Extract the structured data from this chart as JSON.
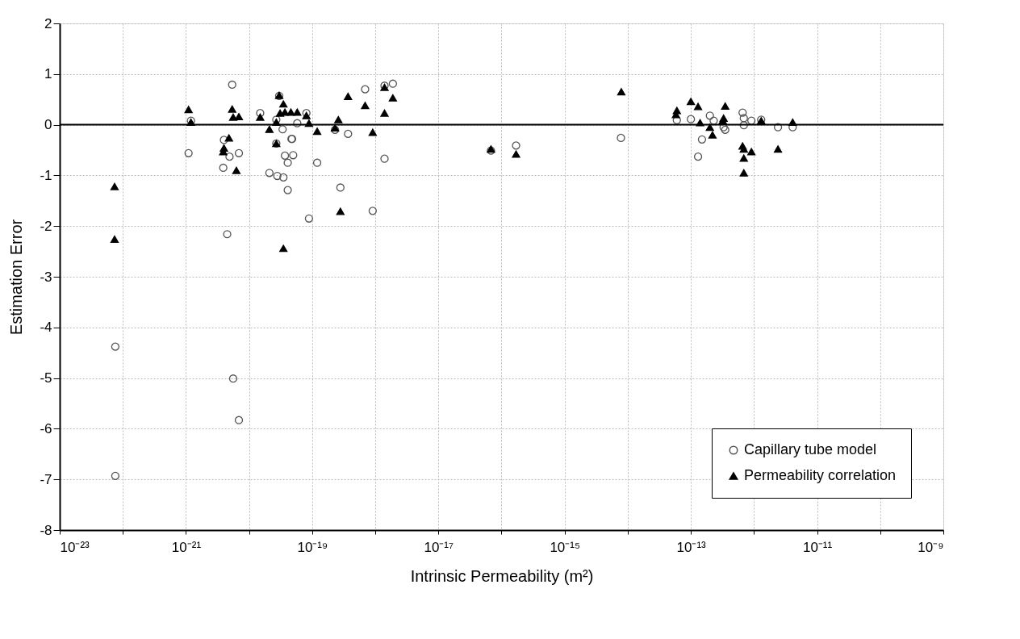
{
  "chart_data": {
    "type": "scatter",
    "xlabel": "Intrinsic Permeability (m²)",
    "ylabel": "Estimation Error",
    "log": "x",
    "grid": true,
    "legend": "bottom right",
    "xlim": [
      1e-23,
      1e-09
    ],
    "ylim": [
      -8,
      2
    ],
    "xticks": [
      {
        "value": 1e-23,
        "label": "10⁻²³"
      },
      {
        "value": 1e-22,
        "label": null
      },
      {
        "value": 1e-21,
        "label": "10⁻²¹"
      },
      {
        "value": 1e-20,
        "label": null
      },
      {
        "value": 1e-19,
        "label": "10⁻¹⁹"
      },
      {
        "value": 1e-18,
        "label": null
      },
      {
        "value": 1e-17,
        "label": "10⁻¹⁷"
      },
      {
        "value": 1e-16,
        "label": null
      },
      {
        "value": 1e-15,
        "label": "10⁻¹⁵"
      },
      {
        "value": 1e-14,
        "label": null
      },
      {
        "value": 1e-13,
        "label": "10⁻¹³"
      },
      {
        "value": 1e-12,
        "label": null
      },
      {
        "value": 1e-11,
        "label": "10⁻¹¹"
      },
      {
        "value": 1e-10,
        "label": null
      },
      {
        "value": 1e-09,
        "label": "10⁻⁹"
      }
    ],
    "yticks": [
      -8,
      -7,
      -6,
      -5,
      -4,
      -3,
      -2,
      -1,
      0,
      1,
      2
    ],
    "ref_lines": [
      {
        "axis": "y",
        "value": 0,
        "color": "#000000",
        "line_style": "solid"
      }
    ],
    "series": [
      {
        "name": "Capillary tube model",
        "color": "#555555",
        "marker": "circle",
        "x": [
          5.4e-21,
          1.2e-21,
          1.1e-21,
          4e-21,
          4.9e-21,
          6.9e-21,
          3.9e-21,
          1.5e-20,
          3e-20,
          2.7e-20,
          3.4e-20,
          4.7e-20,
          3.7e-20,
          4.1e-20,
          2.1e-20,
          2.8e-20,
          3.5e-20,
          4.1e-20,
          4.5e-21,
          2.7e-20,
          7.6e-23,
          7.6e-23,
          5.6e-21,
          6.9e-21,
          6.9e-19,
          1.4e-18,
          1.9e-18,
          8.1e-20,
          5.8e-20,
          2.3e-19,
          3.7e-19,
          4.8e-20,
          5e-20,
          1.2e-19,
          1.4e-18,
          2.8e-19,
          8.9e-20,
          9.1e-19,
          1.7e-16,
          6.8e-17,
          7.8e-15,
          6e-14,
          1e-13,
          2e-13,
          2.3e-13,
          1.5e-13,
          1.3e-13,
          3.3e-13,
          3.5e-13,
          6.6e-13,
          6.9e-13,
          6.9e-13,
          9.1e-13,
          1.3e-12,
          2.4e-12,
          4.1e-12
        ],
        "values": [
          0.79,
          0.08,
          -0.56,
          -0.3,
          -0.63,
          -0.56,
          -0.85,
          0.23,
          0.57,
          0.1,
          -0.09,
          -0.28,
          -0.61,
          -0.75,
          -0.95,
          -1.01,
          -1.04,
          -1.29,
          -2.16,
          -0.37,
          -4.38,
          -6.93,
          -5.01,
          -5.83,
          0.7,
          0.77,
          0.81,
          0.23,
          0.03,
          -0.1,
          -0.18,
          -0.28,
          -0.6,
          -0.75,
          -0.67,
          -1.24,
          -1.85,
          -1.7,
          -0.41,
          -0.51,
          -0.26,
          0.09,
          0.11,
          0.18,
          0.08,
          -0.29,
          -0.63,
          -0.05,
          -0.1,
          0.24,
          0.13,
          -0.01,
          0.08,
          0.1,
          -0.05,
          -0.05
        ]
      },
      {
        "name": "Permeability correlation",
        "color": "#000000",
        "marker": "triangle",
        "x": [
          1.1e-21,
          1.2e-21,
          5.4e-21,
          5.6e-21,
          6.9e-21,
          4.8e-21,
          4e-21,
          3.9e-21,
          6.3e-21,
          7.4e-23,
          7.4e-23,
          1.5e-20,
          3e-20,
          2.1e-20,
          2.7e-20,
          3.5e-20,
          3.7e-20,
          4.6e-20,
          3.1e-20,
          3.5e-20,
          2.7e-20,
          3.7e-19,
          6.9e-19,
          1.4e-18,
          1.9e-18,
          1.4e-18,
          2.6e-19,
          8.9e-20,
          1.2e-19,
          2.3e-19,
          9.1e-19,
          2.8e-19,
          5.8e-20,
          8.1e-20,
          6.8e-17,
          1.7e-16,
          7.9e-15,
          6e-14,
          5.8e-14,
          1.3e-13,
          1e-13,
          3.5e-13,
          1.4e-13,
          2e-13,
          2.2e-13,
          3.3e-13,
          3.2e-13,
          6.6e-13,
          6.9e-13,
          9.1e-13,
          6.9e-13,
          6.9e-13,
          1.3e-12,
          2.4e-12,
          4.1e-12
        ],
        "values": [
          0.3,
          0.05,
          0.31,
          0.15,
          0.16,
          -0.26,
          -0.46,
          -0.53,
          -0.9,
          -1.22,
          -2.26,
          0.15,
          0.58,
          -0.09,
          0.05,
          0.41,
          0.25,
          0.25,
          0.23,
          -2.44,
          -0.37,
          0.56,
          0.38,
          0.74,
          0.53,
          0.23,
          0.1,
          0.03,
          -0.13,
          -0.06,
          -0.15,
          -1.71,
          0.25,
          0.18,
          -0.48,
          -0.58,
          0.65,
          0.28,
          0.2,
          0.36,
          0.46,
          0.37,
          0.04,
          -0.05,
          -0.2,
          0.13,
          0.08,
          -0.42,
          -0.48,
          -0.53,
          -0.66,
          -0.95,
          0.08,
          -0.48,
          0.05
        ]
      }
    ]
  }
}
